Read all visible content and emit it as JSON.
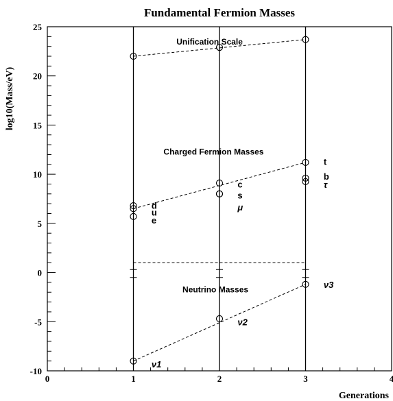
{
  "chart_data": {
    "type": "scatter",
    "title": "Fundamental Fermion Masses",
    "xlabel": "Generations",
    "ylabel": "log10(Mass/eV)",
    "xlim": [
      0,
      4
    ],
    "ylim": [
      -10,
      25
    ],
    "x_ticks": [
      "0",
      "1",
      "2",
      "3",
      "4"
    ],
    "y_ticks": [
      "-10",
      "-5",
      "0",
      "5",
      "10",
      "15",
      "20",
      "25"
    ],
    "grid": false,
    "groups": [
      {
        "label": "Unification Scale",
        "points": [
          {
            "x": 1,
            "y": 22.0
          },
          {
            "x": 2,
            "y": 22.9
          },
          {
            "x": 3,
            "y": 23.7
          }
        ],
        "fit_line": [
          [
            1,
            22.0
          ],
          [
            3,
            23.7
          ]
        ]
      },
      {
        "label": "Charged Fermion Masses",
        "points": [
          {
            "x": 1,
            "y": 6.8,
            "label": "d"
          },
          {
            "x": 1,
            "y": 6.5,
            "label": "u"
          },
          {
            "x": 1,
            "y": 5.7,
            "label": "e"
          },
          {
            "x": 2,
            "y": 9.1,
            "label": "c"
          },
          {
            "x": 2,
            "y": 8.0,
            "label": "s"
          },
          {
            "x": 2,
            "y": 8.0,
            "label": "μ"
          },
          {
            "x": 3,
            "y": 11.2,
            "label": "t"
          },
          {
            "x": 3,
            "y": 9.6,
            "label": "b"
          },
          {
            "x": 3,
            "y": 9.25,
            "label": "τ"
          }
        ],
        "fit_line": [
          [
            1,
            6.5
          ],
          [
            3,
            11.2
          ]
        ]
      },
      {
        "label": "Neutrino Masses",
        "points": [
          {
            "x": 1,
            "y": -9.0,
            "label": "ν1"
          },
          {
            "x": 2,
            "y": -4.7,
            "label": "ν2"
          },
          {
            "x": 3,
            "y": -1.2,
            "label": "ν3"
          }
        ],
        "fit_line": [
          [
            1,
            -9.0
          ],
          [
            3,
            -1.2
          ]
        ]
      }
    ],
    "separator_line": {
      "x": [
        1,
        3
      ],
      "y": 1.0
    },
    "generation_lines": [
      1,
      2,
      3
    ]
  }
}
